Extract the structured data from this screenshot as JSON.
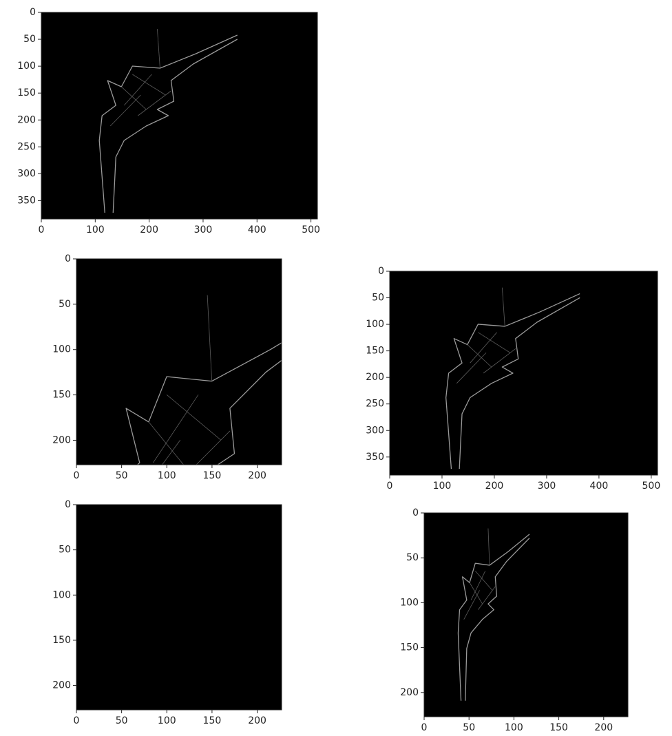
{
  "chart_data": [
    {
      "type": "image",
      "xlim": [
        0,
        512
      ],
      "ylim": [
        384,
        0
      ],
      "xticks": [
        0,
        100,
        200,
        300,
        400,
        500
      ],
      "yticks": [
        0,
        50,
        100,
        150,
        200,
        250,
        300,
        350
      ]
    },
    {
      "type": "image",
      "xlim": [
        0,
        227
      ],
      "ylim": [
        227,
        0
      ],
      "xticks": [
        0,
        50,
        100,
        150,
        200
      ],
      "yticks": [
        0,
        50,
        100,
        150,
        200
      ]
    },
    {
      "type": "image",
      "xlim": [
        0,
        512
      ],
      "ylim": [
        384,
        0
      ],
      "xticks": [
        0,
        100,
        200,
        300,
        400,
        500
      ],
      "yticks": [
        0,
        50,
        100,
        150,
        200,
        250,
        300,
        350
      ]
    },
    {
      "type": "image",
      "xlim": [
        0,
        227
      ],
      "ylim": [
        227,
        0
      ],
      "xticks": [
        0,
        50,
        100,
        150,
        200
      ],
      "yticks": [
        0,
        50,
        100,
        150,
        200
      ]
    },
    {
      "type": "image",
      "xlim": [
        0,
        227
      ],
      "ylim": [
        227,
        0
      ],
      "xticks": [
        0,
        50,
        100,
        150,
        200
      ],
      "yticks": [
        0,
        50,
        100,
        150,
        200
      ]
    }
  ]
}
